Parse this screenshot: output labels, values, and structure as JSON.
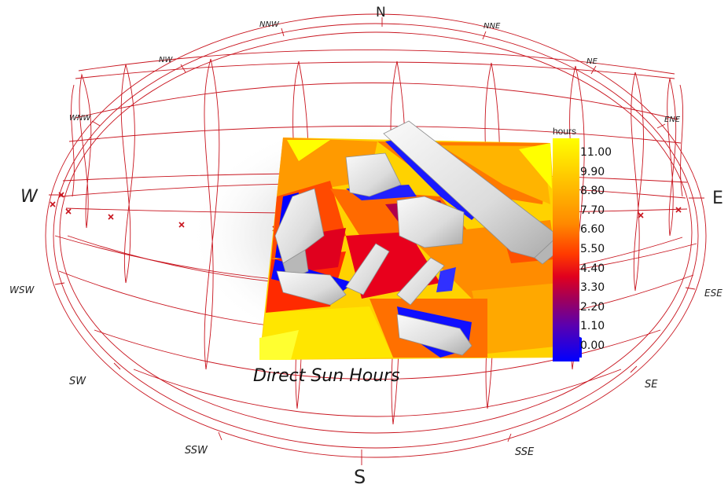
{
  "compass": {
    "N": "N",
    "S": "S",
    "E": "E",
    "W": "W",
    "NNW": "NNW",
    "NNE": "NNE",
    "NW": "NW",
    "NE": "NE",
    "WNW": "WNW",
    "ENE": "ENE",
    "WSW": "WSW",
    "ESE": "ESE",
    "SW": "SW",
    "SE": "SE",
    "SSW": "SSW",
    "SSE": "SSE"
  },
  "title": "Direct Sun Hours",
  "legend": {
    "unit": "hours",
    "ticks": [
      "11.00",
      "9.90",
      "8.80",
      "7.70",
      "6.60",
      "5.50",
      "4.40",
      "3.30",
      "2.20",
      "1.10",
      "0.00"
    ],
    "colors": [
      "#ffff00",
      "#ffd400",
      "#ffae00",
      "#ff8c00",
      "#ff6a00",
      "#ff3800",
      "#e8001c",
      "#b0004c",
      "#7a0090",
      "#3a00d8",
      "#0000ff"
    ]
  },
  "colors": {
    "sunpath": "#c8141e",
    "building": "#e6e6e6"
  }
}
